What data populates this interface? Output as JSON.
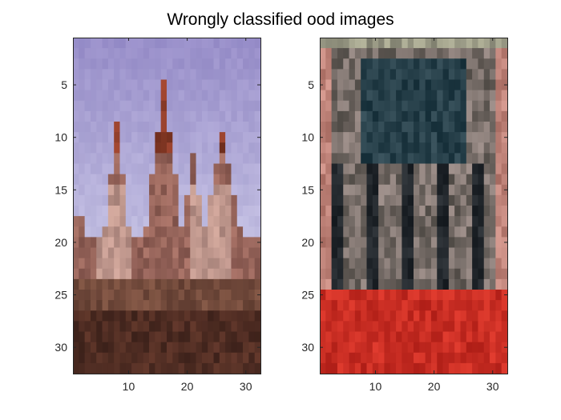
{
  "chart_data": {
    "type": "heatmap",
    "title": "Wrongly classified ood images",
    "xlabel": "",
    "ylabel": "",
    "grid": false,
    "panels": [
      {
        "name": "",
        "xlim": [
          0.5,
          32.5
        ],
        "ylim": [
          0.5,
          32.5
        ],
        "y_reversed": true,
        "xticks": [
          10,
          20,
          30
        ],
        "xtick_labels": [
          "10",
          "20",
          "30"
        ],
        "yticks": [
          5,
          10,
          15,
          20,
          25,
          30
        ],
        "ytick_labels": [
          "5",
          "10",
          "15",
          "20",
          "25",
          "30"
        ],
        "content": "pixelated photo of a gothic church with spires against a lavender sky"
      },
      {
        "name": "",
        "xlim": [
          0.5,
          32.5
        ],
        "ylim": [
          0.5,
          32.5
        ],
        "y_reversed": true,
        "xticks": [
          10,
          20,
          30
        ],
        "xtick_labels": [
          "10",
          "20",
          "30"
        ],
        "yticks": [
          5,
          10,
          15,
          20,
          25,
          30
        ],
        "ytick_labels": [
          "5",
          "10",
          "15",
          "20",
          "25",
          "30"
        ],
        "content": "pixelated photo of a dark arched structure above a red band"
      }
    ]
  }
}
